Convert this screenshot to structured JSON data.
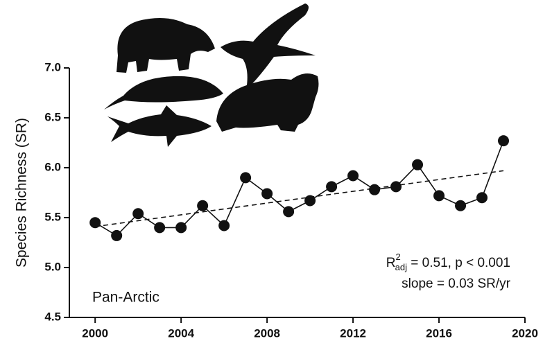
{
  "chart_data": {
    "type": "line",
    "y_label": "Species Richness (SR)",
    "x": [
      2000,
      2001,
      2002,
      2003,
      2004,
      2005,
      2006,
      2007,
      2008,
      2009,
      2010,
      2011,
      2012,
      2013,
      2014,
      2015,
      2016,
      2017,
      2018,
      2019
    ],
    "series": [
      {
        "color": "#111111",
        "values": [
          5.45,
          5.32,
          5.54,
          5.4,
          5.4,
          5.62,
          5.42,
          5.9,
          5.74,
          5.56,
          5.67,
          5.81,
          5.92,
          5.78,
          5.81,
          6.03,
          5.72,
          5.62,
          5.7,
          6.27
        ]
      }
    ],
    "trend": {
      "x": [
        2000,
        2019
      ],
      "values": [
        5.41,
        5.97
      ]
    },
    "xlim": [
      1998.8,
      2020
    ],
    "ylim": [
      4.5,
      7.0
    ],
    "xticks": [
      2000,
      2004,
      2008,
      2012,
      2016,
      2020
    ],
    "yticks": [
      4.5,
      {
        "value": 5.0,
        "label": "5.0"
      },
      5.5,
      {
        "value": 6.0,
        "label": "6.0"
      },
      6.5,
      {
        "value": 7.0,
        "label": "7.0"
      }
    ],
    "region_label": "Pan-Arctic",
    "stat_annotation": {
      "r": "R",
      "sup": "2",
      "sub": "adj",
      "rest": " = 0.51, p < 0.001"
    },
    "slope_annotation": "slope = 0.03 SR/yr"
  }
}
